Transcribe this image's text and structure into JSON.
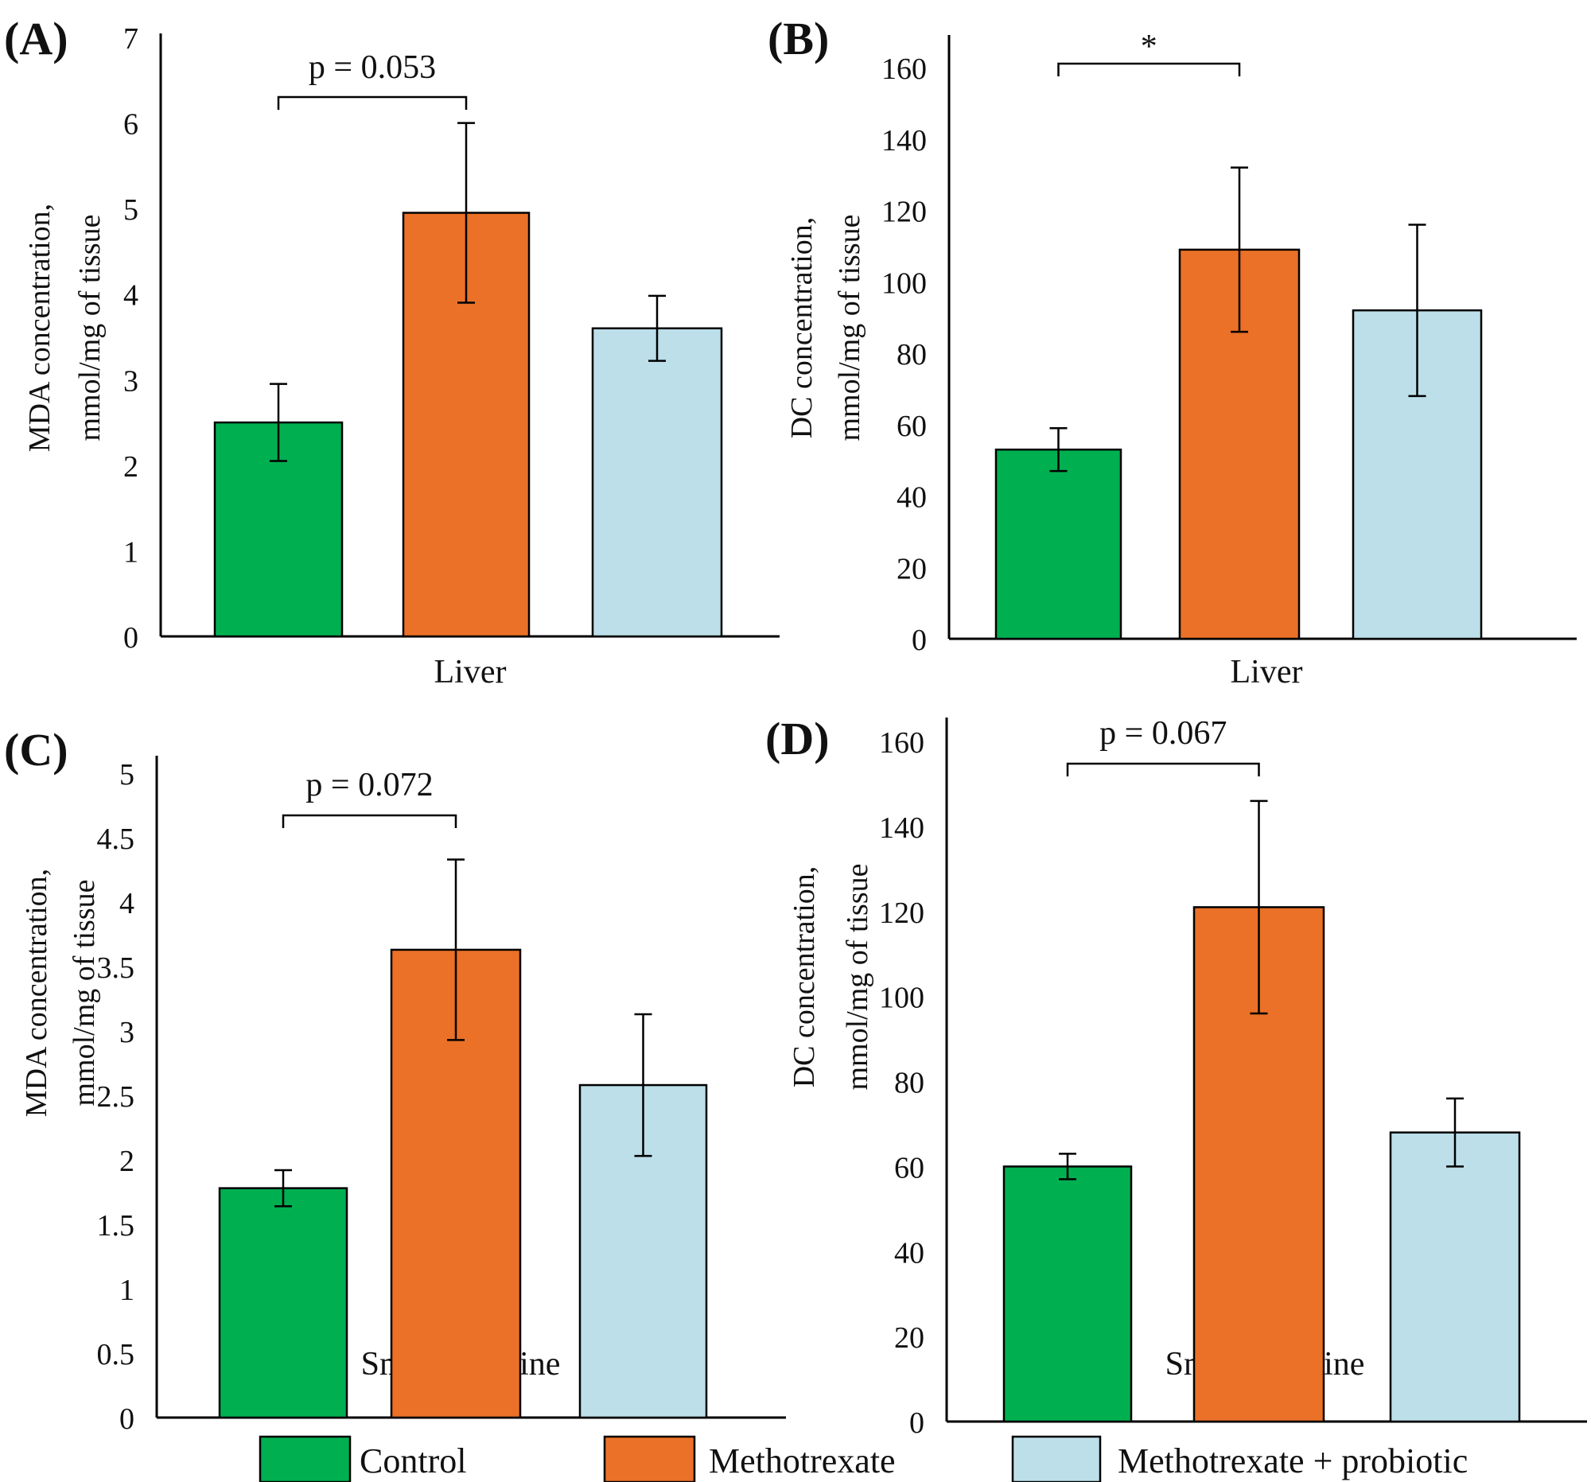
{
  "colors": {
    "control": "#00b050",
    "methotrexate": "#ea7127",
    "probiotic": "#bcdfe9"
  },
  "legend": [
    {
      "label": "Control",
      "color": "#00b050"
    },
    {
      "label": "Methotrexate",
      "color": "#ea7127"
    },
    {
      "label": "Methotrexate + probiotic",
      "color": "#bcdfe9"
    }
  ],
  "chart_data": [
    {
      "type": "bar",
      "panel_label": "(A)",
      "ylabel": [
        "MDA concentration,",
        "mmol/mg of tissue"
      ],
      "xlabel": "Liver",
      "ylim": [
        0,
        7
      ],
      "ticks": [
        "0",
        "1",
        "2",
        "3",
        "4",
        "5",
        "6",
        "7"
      ],
      "tick_values": [
        0,
        1,
        2,
        3,
        4,
        5,
        6,
        7
      ],
      "series": [
        {
          "name": "Control",
          "value": 2.5,
          "err": 0.45
        },
        {
          "name": "Methotrexate",
          "value": 4.95,
          "err": 1.05
        },
        {
          "name": "Methotrexate + probiotic",
          "value": 3.6,
          "err": 0.38
        }
      ],
      "significance": {
        "label": "p = 0.053",
        "between": [
          0,
          1
        ]
      }
    },
    {
      "type": "bar",
      "panel_label": "(B)",
      "ylabel": [
        "DC concentration,",
        "mmol/mg of tissue"
      ],
      "xlabel": "Liver",
      "ylim": [
        0,
        160
      ],
      "ticks": [
        "0",
        "20",
        "40",
        "60",
        "80",
        "100",
        "120",
        "140",
        "160"
      ],
      "tick_values": [
        0,
        20,
        40,
        60,
        80,
        100,
        120,
        140,
        160
      ],
      "series": [
        {
          "name": "Control",
          "value": 53,
          "err": 6
        },
        {
          "name": "Methotrexate",
          "value": 109,
          "err": 23
        },
        {
          "name": "Methotrexate + probiotic",
          "value": 92,
          "err": 24
        }
      ],
      "significance": {
        "label": "*",
        "between": [
          0,
          1
        ]
      }
    },
    {
      "type": "bar",
      "panel_label": "(C)",
      "ylabel": [
        "MDA concentration,",
        "mmol/mg of tissue"
      ],
      "xlabel": "Small intestine",
      "ylim": [
        0,
        5
      ],
      "ticks": [
        "0",
        "0.5",
        "1",
        "1.5",
        "2",
        "2.5",
        "3",
        "3.5",
        "4",
        "4.5",
        "5"
      ],
      "tick_values": [
        0,
        0.5,
        1,
        1.5,
        2,
        2.5,
        3,
        3.5,
        4,
        4.5,
        5
      ],
      "series": [
        {
          "name": "Control",
          "value": 1.78,
          "err": 0.14
        },
        {
          "name": "Methotrexate",
          "value": 3.63,
          "err": 0.7
        },
        {
          "name": "Methotrexate + probiotic",
          "value": 2.58,
          "err": 0.55
        }
      ],
      "significance": {
        "label": "p = 0.072",
        "between": [
          0,
          1
        ]
      }
    },
    {
      "type": "bar",
      "panel_label": "(D)",
      "ylabel": [
        "DC concentration,",
        "mmol/mg of tissue"
      ],
      "xlabel": "Small intestine",
      "ylim": [
        0,
        160
      ],
      "ticks": [
        "0",
        "20",
        "40",
        "60",
        "80",
        "100",
        "120",
        "140",
        "160"
      ],
      "tick_values": [
        0,
        20,
        40,
        60,
        80,
        100,
        120,
        140,
        160
      ],
      "series": [
        {
          "name": "Control",
          "value": 60,
          "err": 3
        },
        {
          "name": "Methotrexate",
          "value": 121,
          "err": 25
        },
        {
          "name": "Methotrexate + probiotic",
          "value": 68,
          "err": 8
        }
      ],
      "significance": {
        "label": "p = 0.067",
        "between": [
          0,
          1
        ]
      }
    }
  ]
}
